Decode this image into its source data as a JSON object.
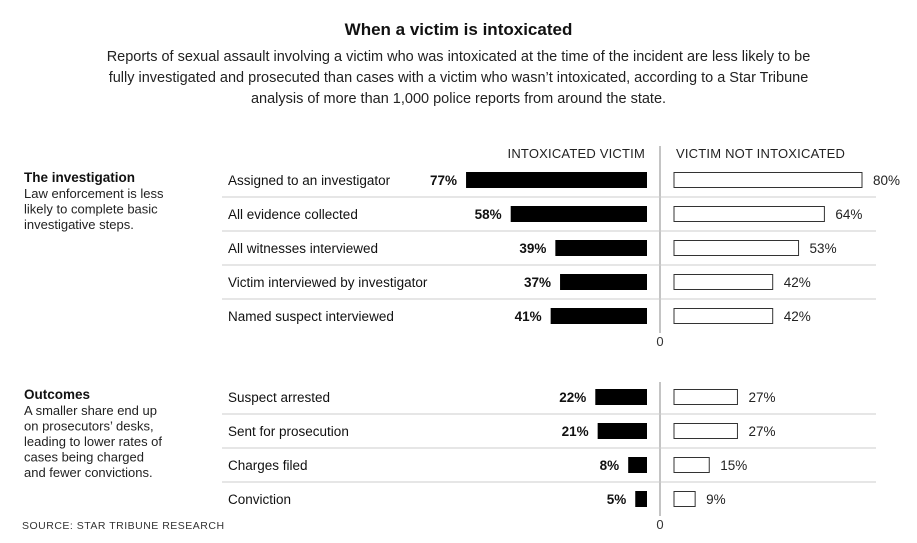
{
  "title": "When a victim is intoxicated",
  "subtitle": "Reports of sexual assault involving a victim who was intoxicated at the time of the incident are less likely to be fully investigated and prosecuted than cases with a victim who wasn’t intoxicated, according to a Star Tribune analysis of more than 1,000 police reports from around the state.",
  "source": "SOURCE: STAR TRIBUNE RESEARCH",
  "colors": {
    "intoxicated": "#000000",
    "not_intoxicated": "#ffffff",
    "outline": "#333333"
  },
  "chart_data": {
    "type": "bar",
    "columns": [
      "INTOXICATED VICTIM",
      "VICTIM NOT INTOXICATED"
    ],
    "zero_label": "0",
    "sections": [
      {
        "title": "The investigation",
        "description": [
          "Law enforcement is less",
          "likely to complete basic",
          "investigative steps."
        ],
        "rows": [
          {
            "label": "Assigned to an investigator",
            "intoxicated": 77,
            "not_intoxicated": 80
          },
          {
            "label": "All evidence collected",
            "intoxicated": 58,
            "not_intoxicated": 64
          },
          {
            "label": "All witnesses interviewed",
            "intoxicated": 39,
            "not_intoxicated": 53
          },
          {
            "label": "Victim interviewed by investigator",
            "intoxicated": 37,
            "not_intoxicated": 42
          },
          {
            "label": "Named suspect interviewed",
            "intoxicated": 41,
            "not_intoxicated": 42
          }
        ]
      },
      {
        "title": "Outcomes",
        "description": [
          "A smaller share end up",
          "on prosecutors’ desks,",
          "leading to lower rates of",
          "cases being charged",
          "and fewer convictions."
        ],
        "rows": [
          {
            "label": "Suspect arrested",
            "intoxicated": 22,
            "not_intoxicated": 27
          },
          {
            "label": "Sent for prosecution",
            "intoxicated": 21,
            "not_intoxicated": 27
          },
          {
            "label": "Charges filed",
            "intoxicated": 8,
            "not_intoxicated": 15
          },
          {
            "label": "Conviction",
            "intoxicated": 5,
            "not_intoxicated": 9
          }
        ]
      }
    ]
  }
}
